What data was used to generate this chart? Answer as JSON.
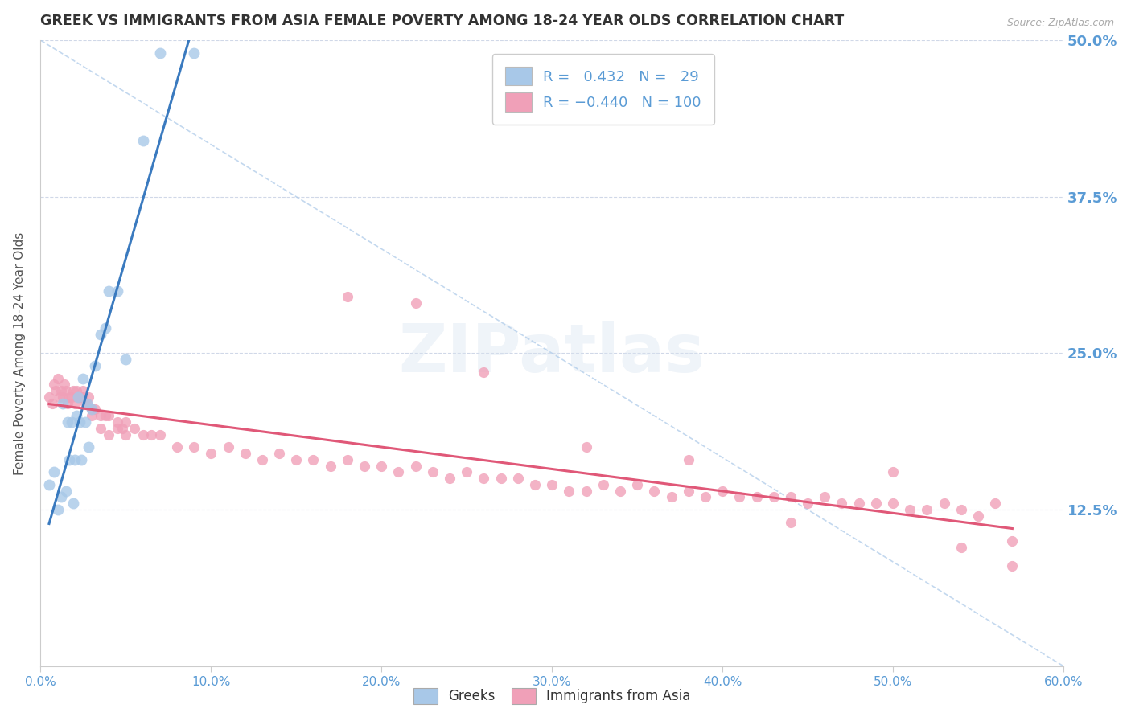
{
  "title": "GREEK VS IMMIGRANTS FROM ASIA FEMALE POVERTY AMONG 18-24 YEAR OLDS CORRELATION CHART",
  "source": "Source: ZipAtlas.com",
  "ylabel": "Female Poverty Among 18-24 Year Olds",
  "xlim": [
    0.0,
    0.6
  ],
  "ylim": [
    0.0,
    0.5
  ],
  "yticks": [
    0.0,
    0.125,
    0.25,
    0.375,
    0.5
  ],
  "ytick_labels": [
    "",
    "12.5%",
    "25.0%",
    "37.5%",
    "50.0%"
  ],
  "xticks": [
    0.0,
    0.1,
    0.2,
    0.3,
    0.4,
    0.5,
    0.6
  ],
  "xtick_labels": [
    "0.0%",
    "10.0%",
    "20.0%",
    "30.0%",
    "40.0%",
    "50.0%",
    "60.0%"
  ],
  "greek_color": "#a8c8e8",
  "asia_color": "#f0a0b8",
  "greek_line_color": "#3a7abf",
  "asia_line_color": "#e05878",
  "greek_R": 0.432,
  "greek_N": 29,
  "asia_R": -0.44,
  "asia_N": 100,
  "watermark": "ZIPatlas",
  "background_color": "#ffffff",
  "title_color": "#333333",
  "axis_label_color": "#5a9bd5",
  "tick_label_color": "#5a9bd5",
  "legend_label_greek": "Greeks",
  "legend_label_asia": "Immigrants from Asia",
  "greek_x": [
    0.005,
    0.008,
    0.01,
    0.012,
    0.013,
    0.015,
    0.016,
    0.017,
    0.018,
    0.019,
    0.02,
    0.021,
    0.022,
    0.023,
    0.024,
    0.025,
    0.026,
    0.027,
    0.028,
    0.03,
    0.032,
    0.035,
    0.038,
    0.04,
    0.045,
    0.05,
    0.06,
    0.07,
    0.09
  ],
  "greek_y": [
    0.145,
    0.155,
    0.125,
    0.135,
    0.21,
    0.14,
    0.195,
    0.165,
    0.195,
    0.13,
    0.165,
    0.2,
    0.215,
    0.195,
    0.165,
    0.23,
    0.195,
    0.21,
    0.175,
    0.205,
    0.24,
    0.265,
    0.27,
    0.3,
    0.3,
    0.245,
    0.42,
    0.49,
    0.49
  ],
  "asia_x": [
    0.005,
    0.007,
    0.008,
    0.009,
    0.01,
    0.011,
    0.012,
    0.013,
    0.014,
    0.015,
    0.016,
    0.017,
    0.018,
    0.019,
    0.02,
    0.021,
    0.022,
    0.023,
    0.024,
    0.025,
    0.026,
    0.027,
    0.028,
    0.03,
    0.032,
    0.035,
    0.038,
    0.04,
    0.045,
    0.048,
    0.05,
    0.055,
    0.06,
    0.065,
    0.07,
    0.08,
    0.09,
    0.1,
    0.11,
    0.12,
    0.13,
    0.14,
    0.15,
    0.16,
    0.17,
    0.18,
    0.19,
    0.2,
    0.21,
    0.22,
    0.23,
    0.24,
    0.25,
    0.26,
    0.27,
    0.28,
    0.29,
    0.3,
    0.31,
    0.32,
    0.33,
    0.34,
    0.35,
    0.36,
    0.37,
    0.38,
    0.39,
    0.4,
    0.41,
    0.42,
    0.43,
    0.44,
    0.45,
    0.46,
    0.47,
    0.48,
    0.49,
    0.5,
    0.51,
    0.52,
    0.53,
    0.54,
    0.55,
    0.56,
    0.57,
    0.025,
    0.03,
    0.035,
    0.04,
    0.045,
    0.05,
    0.18,
    0.22,
    0.26,
    0.32,
    0.38,
    0.44,
    0.5,
    0.54,
    0.57
  ],
  "asia_y": [
    0.215,
    0.21,
    0.225,
    0.22,
    0.23,
    0.215,
    0.22,
    0.215,
    0.225,
    0.22,
    0.21,
    0.215,
    0.215,
    0.22,
    0.21,
    0.22,
    0.215,
    0.215,
    0.215,
    0.215,
    0.21,
    0.21,
    0.215,
    0.205,
    0.205,
    0.2,
    0.2,
    0.2,
    0.195,
    0.19,
    0.195,
    0.19,
    0.185,
    0.185,
    0.185,
    0.175,
    0.175,
    0.17,
    0.175,
    0.17,
    0.165,
    0.17,
    0.165,
    0.165,
    0.16,
    0.165,
    0.16,
    0.16,
    0.155,
    0.16,
    0.155,
    0.15,
    0.155,
    0.15,
    0.15,
    0.15,
    0.145,
    0.145,
    0.14,
    0.14,
    0.145,
    0.14,
    0.145,
    0.14,
    0.135,
    0.14,
    0.135,
    0.14,
    0.135,
    0.135,
    0.135,
    0.135,
    0.13,
    0.135,
    0.13,
    0.13,
    0.13,
    0.13,
    0.125,
    0.125,
    0.13,
    0.125,
    0.12,
    0.13,
    0.1,
    0.22,
    0.2,
    0.19,
    0.185,
    0.19,
    0.185,
    0.295,
    0.29,
    0.235,
    0.175,
    0.165,
    0.115,
    0.155,
    0.095,
    0.08
  ]
}
